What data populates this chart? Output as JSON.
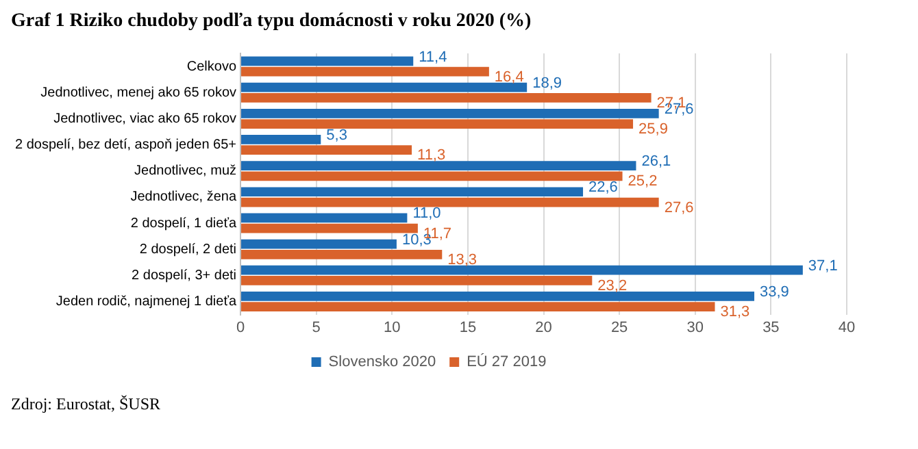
{
  "chart_data": {
    "type": "bar",
    "orientation": "horizontal",
    "title": "Graf 1 Riziko chudoby podľa typu domácnosti v roku 2020 (%)",
    "annotations": [
      "Zdroj: Eurostat, ŠUSR"
    ],
    "categories": [
      "Celkovo",
      "Jednotlivec, menej ako 65 rokov",
      "Jednotlivec, viac ako 65 rokov",
      "2 dospelí, bez detí, aspoň jeden 65+",
      "Jednotlivec, muž",
      "Jednotlivec, žena",
      "2 dospelí, 1 dieťa",
      "2 dospelí, 2 deti",
      "2 dospelí, 3+ deti",
      "Jeden rodič, najmenej 1 dieťa"
    ],
    "series": [
      {
        "name": "Slovensko 2020",
        "color": "#1f6db5",
        "values": [
          11.4,
          18.9,
          27.6,
          5.3,
          26.1,
          22.6,
          11.0,
          10.3,
          37.1,
          33.9
        ],
        "value_labels": [
          "11,4",
          "18,9",
          "27,6",
          "5,3",
          "26,1",
          "22,6",
          "11,0",
          "10,3",
          "37,1",
          "33,9"
        ]
      },
      {
        "name": "EÚ 27 2019",
        "color": "#d9622b",
        "values": [
          16.4,
          27.1,
          25.9,
          11.3,
          25.2,
          27.6,
          11.7,
          13.3,
          23.2,
          31.3
        ],
        "value_labels": [
          "16,4",
          "27,1",
          "25,9",
          "11,3",
          "25,2",
          "27,6",
          "11,7",
          "13,3",
          "23,2",
          "31,3"
        ]
      }
    ],
    "xlim": [
      0,
      40
    ],
    "xticks": [
      0,
      5,
      10,
      15,
      20,
      25,
      30,
      35,
      40
    ],
    "grid": "x",
    "legend": "bottom"
  }
}
